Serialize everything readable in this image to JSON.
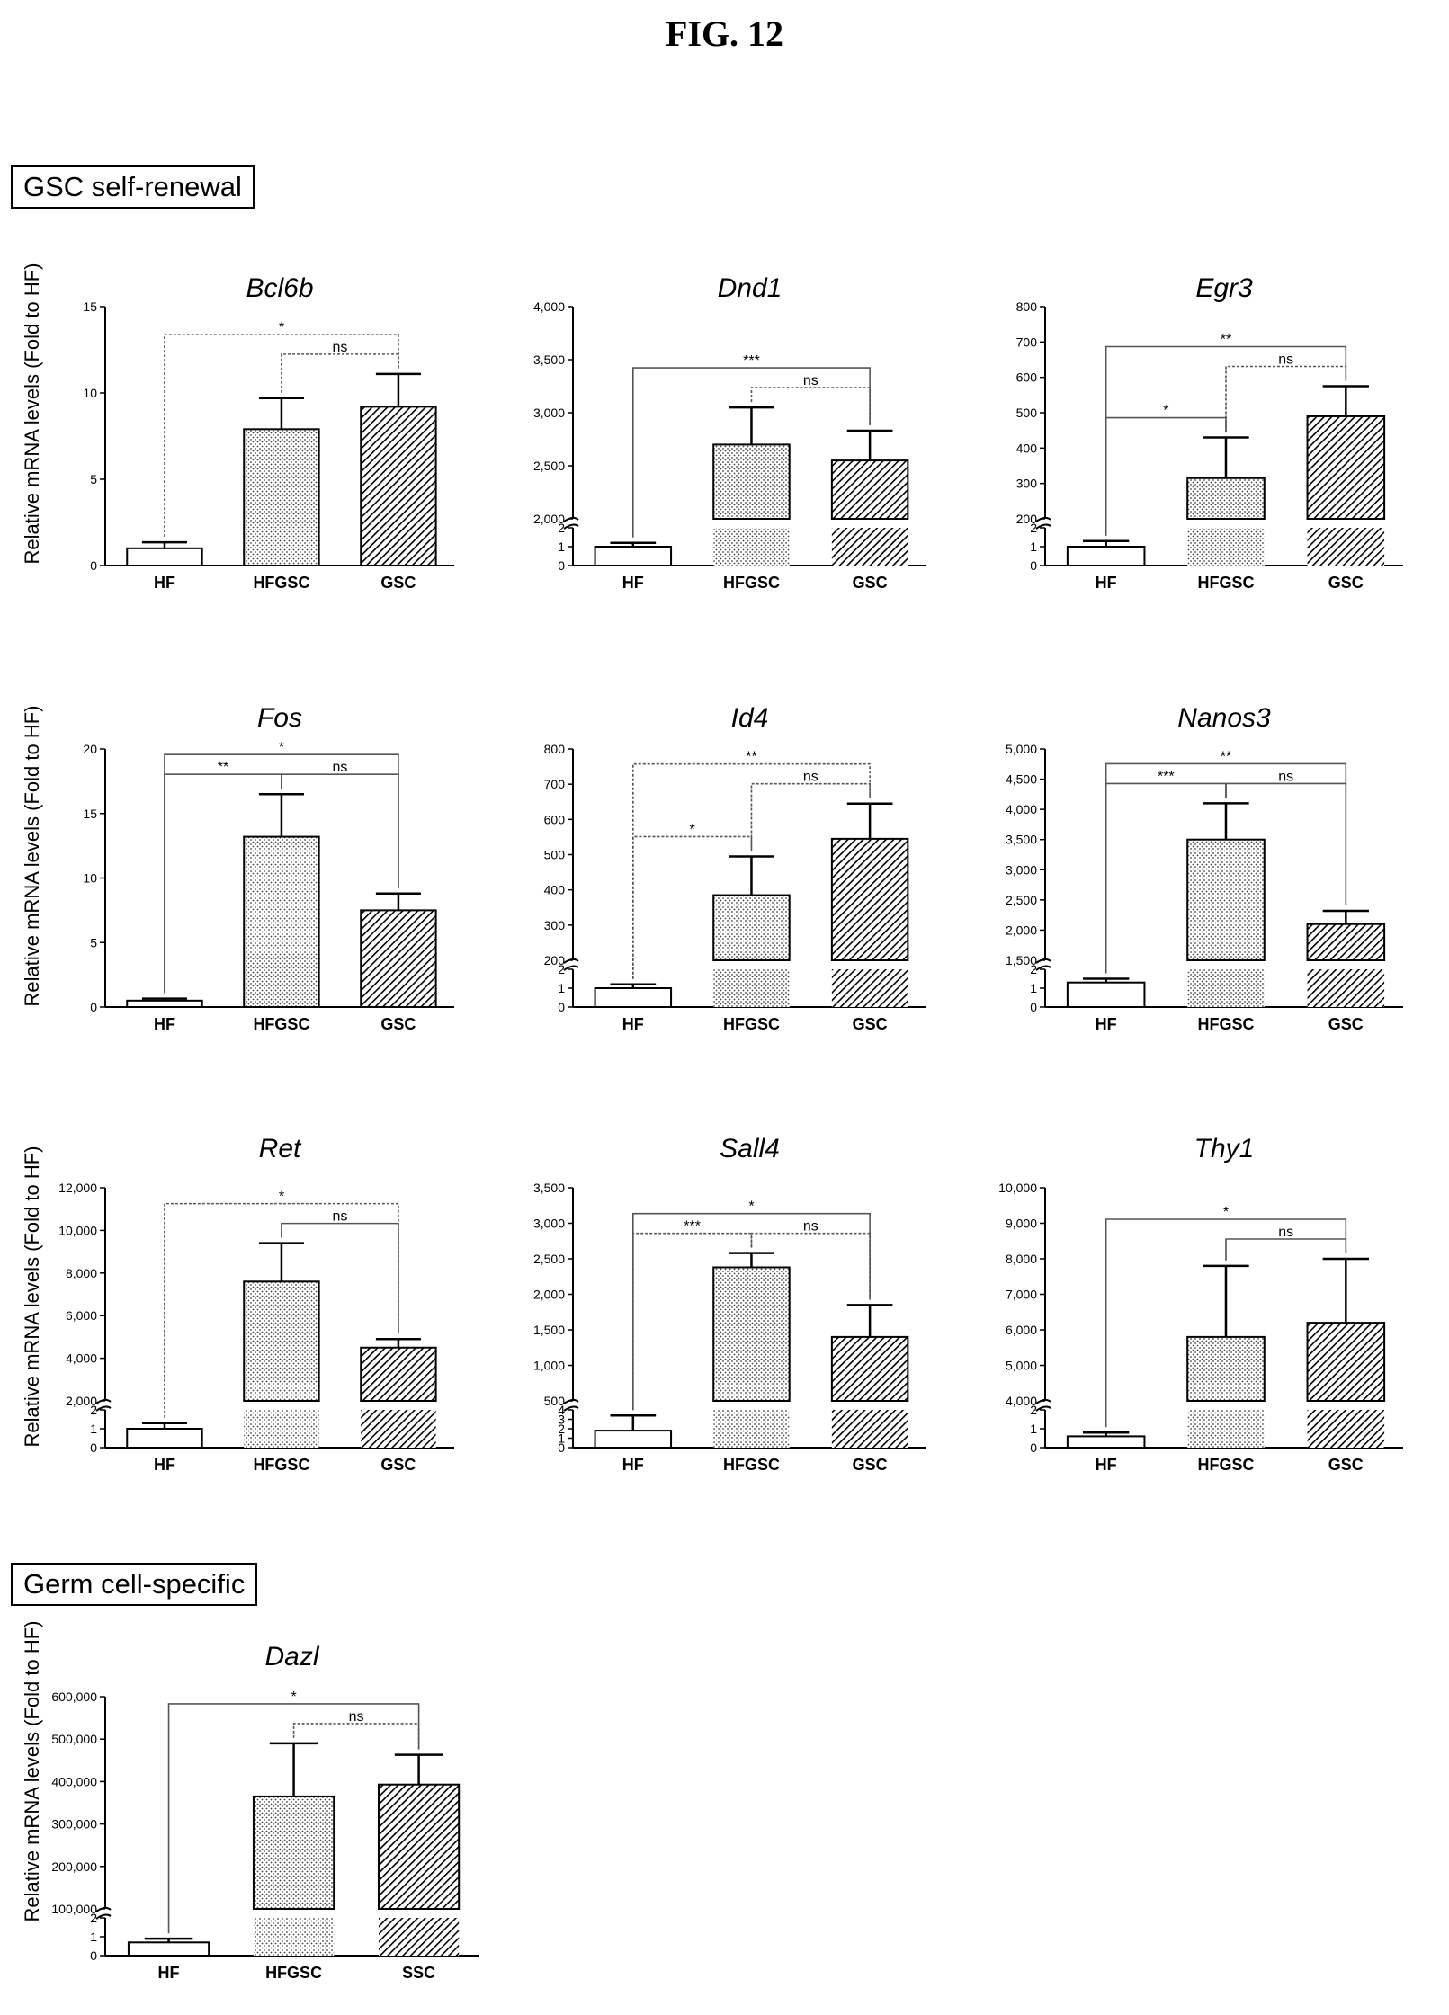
{
  "figure_title": "FIG. 12",
  "sections": [
    {
      "label": "GSC self-renewal"
    },
    {
      "label": "Germ cell-specific"
    }
  ],
  "ylabel": "Relative mRNA levels (Fold to HF)",
  "colors": {
    "axis": "#000000",
    "bar_edge": "#000000",
    "sig_line": "#555555"
  },
  "chart_data": [
    {
      "type": "bar",
      "title": "Bcl6b",
      "categories": [
        "HF",
        "HFGSC",
        "GSC"
      ],
      "values": [
        1,
        7.9,
        9.2
      ],
      "errors": [
        0.35,
        1.8,
        1.9
      ],
      "ylim": [
        0,
        15
      ],
      "yticks": [
        0,
        5,
        10,
        15
      ],
      "ytick_labels": [
        "0",
        "5",
        "10",
        "15"
      ],
      "break": null,
      "sig": [
        {
          "pair": [
            0,
            2
          ],
          "label": "*",
          "style": "dotted"
        },
        {
          "pair": [
            1,
            2
          ],
          "label": "ns",
          "style": "dotted"
        }
      ]
    },
    {
      "type": "bar",
      "title": "Dnd1",
      "categories": [
        "HF",
        "HFGSC",
        "GSC"
      ],
      "values": [
        1,
        2700,
        2550
      ],
      "errors": [
        0.2,
        350,
        280
      ],
      "ylim": [
        0,
        4000
      ],
      "yticks": [
        0,
        1,
        2,
        2000,
        2500,
        3000,
        3500,
        4000
      ],
      "ytick_labels": [
        "0",
        "1",
        "2",
        "2,000",
        "2,500",
        "3,000",
        "3,500",
        "4,000"
      ],
      "break": {
        "low_max": 2,
        "high_min": 2000
      },
      "sig": [
        {
          "pair": [
            0,
            2
          ],
          "label": "***",
          "style": "solid"
        },
        {
          "pair": [
            1,
            2
          ],
          "label": "ns",
          "style": "dotted"
        }
      ]
    },
    {
      "type": "bar",
      "title": "Egr3",
      "categories": [
        "HF",
        "HFGSC",
        "GSC"
      ],
      "values": [
        1,
        315,
        490
      ],
      "errors": [
        0.3,
        115,
        85
      ],
      "ylim": [
        0,
        800
      ],
      "yticks": [
        0,
        1,
        2,
        200,
        300,
        400,
        500,
        600,
        700,
        800
      ],
      "ytick_labels": [
        "0",
        "1",
        "2",
        "200",
        "300",
        "400",
        "500",
        "600",
        "700",
        "800"
      ],
      "break": {
        "low_max": 2,
        "high_min": 200
      },
      "sig": [
        {
          "pair": [
            0,
            1
          ],
          "label": "*",
          "style": "solid"
        },
        {
          "pair": [
            0,
            2
          ],
          "label": "**",
          "style": "solid"
        },
        {
          "pair": [
            1,
            2
          ],
          "label": "ns",
          "style": "dotted"
        }
      ]
    },
    {
      "type": "bar",
      "title": "Fos",
      "categories": [
        "HF",
        "HFGSC",
        "GSC"
      ],
      "values": [
        0.5,
        13.2,
        7.5
      ],
      "errors": [
        0.15,
        3.3,
        1.3
      ],
      "ylim": [
        0,
        20
      ],
      "yticks": [
        0,
        5,
        10,
        15,
        20
      ],
      "ytick_labels": [
        "0",
        "5",
        "10",
        "15",
        "20"
      ],
      "break": null,
      "sig": [
        {
          "pair": [
            0,
            1
          ],
          "label": "**",
          "style": "solid"
        },
        {
          "pair": [
            0,
            2
          ],
          "label": "*",
          "style": "solid"
        },
        {
          "pair": [
            1,
            2
          ],
          "label": "ns",
          "style": "solid"
        }
      ]
    },
    {
      "type": "bar",
      "title": "Id4",
      "categories": [
        "HF",
        "HFGSC",
        "GSC"
      ],
      "values": [
        1,
        385,
        545
      ],
      "errors": [
        0.2,
        110,
        100
      ],
      "ylim": [
        0,
        800
      ],
      "yticks": [
        0,
        1,
        2,
        200,
        300,
        400,
        500,
        600,
        700,
        800
      ],
      "ytick_labels": [
        "0",
        "1",
        "2",
        "200",
        "300",
        "400",
        "500",
        "600",
        "700",
        "800"
      ],
      "break": {
        "low_max": 2,
        "high_min": 200
      },
      "sig": [
        {
          "pair": [
            0,
            1
          ],
          "label": "*",
          "style": "dotted"
        },
        {
          "pair": [
            0,
            2
          ],
          "label": "**",
          "style": "dotted"
        },
        {
          "pair": [
            1,
            2
          ],
          "label": "ns",
          "style": "dotted"
        }
      ]
    },
    {
      "type": "bar",
      "title": "Nanos3",
      "categories": [
        "HF",
        "HFGSC",
        "GSC"
      ],
      "values": [
        1.3,
        3500,
        2100
      ],
      "errors": [
        0.2,
        600,
        220
      ],
      "ylim": [
        0,
        5000
      ],
      "yticks": [
        0,
        1,
        2,
        1500,
        2000,
        2500,
        3000,
        3500,
        4000,
        4500,
        5000
      ],
      "ytick_labels": [
        "0",
        "1",
        "2",
        "1,500",
        "2,000",
        "2,500",
        "3,000",
        "3,500",
        "4,000",
        "4,500",
        "5,000"
      ],
      "break": {
        "low_max": 2,
        "high_min": 1500
      },
      "sig": [
        {
          "pair": [
            0,
            1
          ],
          "label": "***",
          "style": "solid"
        },
        {
          "pair": [
            0,
            2
          ],
          "label": "**",
          "style": "solid"
        },
        {
          "pair": [
            1,
            2
          ],
          "label": "ns",
          "style": "solid"
        }
      ]
    },
    {
      "type": "bar",
      "title": "Ret",
      "categories": [
        "HF",
        "HFGSC",
        "GSC"
      ],
      "values": [
        1,
        7600,
        4500
      ],
      "errors": [
        0.3,
        1800,
        400
      ],
      "ylim": [
        0,
        12000
      ],
      "yticks": [
        0,
        1,
        2,
        2000,
        4000,
        6000,
        8000,
        10000,
        12000
      ],
      "ytick_labels": [
        "0",
        "1",
        "2",
        "2,000",
        "4,000",
        "6,000",
        "8,000",
        "10,000",
        "12,000"
      ],
      "break": {
        "low_max": 2,
        "high_min": 2000
      },
      "sig": [
        {
          "pair": [
            0,
            2
          ],
          "label": "*",
          "style": "dotted"
        },
        {
          "pair": [
            1,
            2
          ],
          "label": "ns",
          "style": "solid"
        }
      ]
    },
    {
      "type": "bar",
      "title": "Sall4",
      "categories": [
        "HF",
        "HFGSC",
        "GSC"
      ],
      "values": [
        1.8,
        2380,
        1400
      ],
      "errors": [
        1.6,
        200,
        450
      ],
      "ylim": [
        0,
        3500
      ],
      "yticks": [
        0,
        1,
        2,
        3,
        4,
        500,
        1000,
        1500,
        2000,
        2500,
        3000,
        3500
      ],
      "ytick_labels": [
        "0",
        "1",
        "2",
        "3",
        "4",
        "500",
        "1,000",
        "1,500",
        "2,000",
        "2,500",
        "3,000",
        "3,500"
      ],
      "break": {
        "low_max": 4,
        "high_min": 500
      },
      "sig": [
        {
          "pair": [
            0,
            1
          ],
          "label": "***",
          "style": "dotted"
        },
        {
          "pair": [
            0,
            2
          ],
          "label": "*",
          "style": "solid"
        },
        {
          "pair": [
            1,
            2
          ],
          "label": "ns",
          "style": "dotted"
        }
      ]
    },
    {
      "type": "bar",
      "title": "Thy1",
      "categories": [
        "HF",
        "HFGSC",
        "GSC"
      ],
      "values": [
        0.6,
        5800,
        6200
      ],
      "errors": [
        0.2,
        2000,
        1800
      ],
      "ylim": [
        0,
        10000
      ],
      "yticks": [
        0,
        1,
        2,
        4000,
        5000,
        6000,
        7000,
        8000,
        9000,
        10000
      ],
      "ytick_labels": [
        "0",
        "1",
        "2",
        "4,000",
        "5,000",
        "6,000",
        "7,000",
        "8,000",
        "9,000",
        "10,000"
      ],
      "break": {
        "low_max": 2,
        "high_min": 4000
      },
      "sig": [
        {
          "pair": [
            0,
            2
          ],
          "label": "*",
          "style": "solid"
        },
        {
          "pair": [
            1,
            2
          ],
          "label": "ns",
          "style": "solid"
        }
      ]
    },
    {
      "type": "bar",
      "title": "Dazl",
      "categories": [
        "HF",
        "HFGSC",
        "SSC"
      ],
      "values": [
        0.7,
        365000,
        393000
      ],
      "errors": [
        0.2,
        125000,
        70000
      ],
      "ylim": [
        0,
        600000
      ],
      "yticks": [
        0,
        1,
        2,
        100000,
        200000,
        300000,
        400000,
        500000,
        600000
      ],
      "ytick_labels": [
        "0",
        "1",
        "2",
        "100,000",
        "200,000",
        "300,000",
        "400,000",
        "500,000",
        "600,000"
      ],
      "break": {
        "low_max": 2,
        "high_min": 100000
      },
      "sig": [
        {
          "pair": [
            0,
            2
          ],
          "label": "*",
          "style": "solid"
        },
        {
          "pair": [
            1,
            2
          ],
          "label": "ns",
          "style": "dotted"
        }
      ]
    }
  ]
}
